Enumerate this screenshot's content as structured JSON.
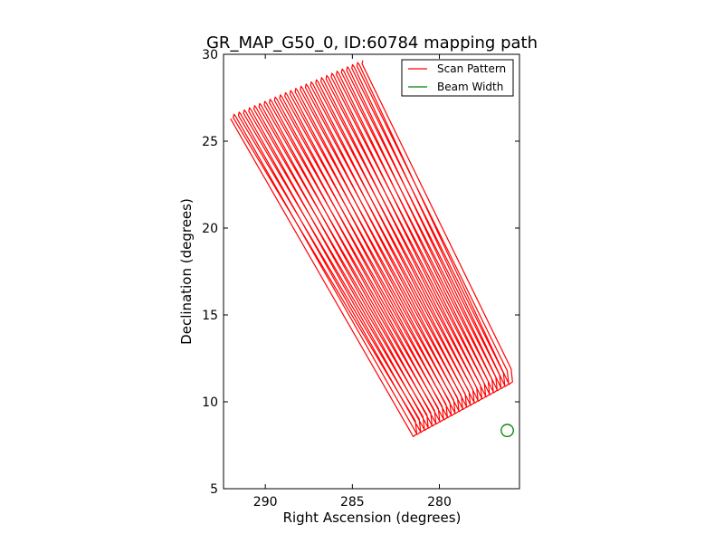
{
  "chart_data": {
    "type": "line",
    "title": "GR_MAP_G50_0, ID:60784 mapping path",
    "xlabel": "Right Ascension (degrees)",
    "ylabel": "Declination (degrees)",
    "xlim": [
      292.4,
      275.4
    ],
    "ylim": [
      5,
      30
    ],
    "x_inverted": true,
    "xticks": [
      290,
      285,
      280
    ],
    "yticks": [
      5,
      10,
      15,
      20,
      25,
      30
    ],
    "grid": false,
    "legend": {
      "position": "top-right",
      "entries": [
        "Scan Pattern",
        "Beam Width"
      ]
    },
    "series": [
      {
        "name": "Scan Pattern",
        "color": "#ff0000",
        "scan": {
          "n_legs": 26,
          "first_top": [
            292.0,
            26.3
          ],
          "last_top": [
            284.6,
            29.4
          ],
          "first_bottom": [
            281.5,
            8.0
          ],
          "last_bottom": [
            276.0,
            11.0
          ],
          "turn_width": 0.2
        }
      },
      {
        "name": "Beam Width",
        "color": "#008000",
        "circle": {
          "center": [
            276.1,
            8.35
          ],
          "radius_deg": 0.35
        }
      }
    ]
  }
}
